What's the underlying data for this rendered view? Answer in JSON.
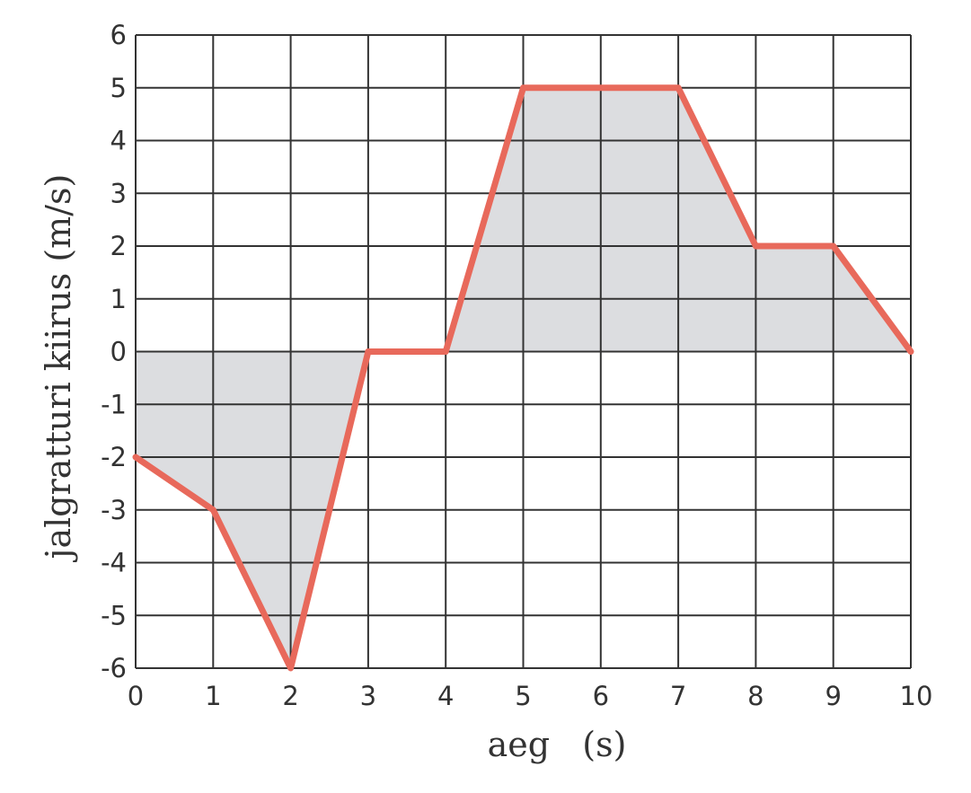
{
  "chart_data": {
    "type": "line",
    "title": "",
    "xlabel": "aeg   (s)",
    "ylabel": "jalgratturi kiirus (m/s)",
    "xlim": [
      0,
      10
    ],
    "ylim": [
      -6,
      6
    ],
    "x_ticks": [
      0,
      1,
      2,
      3,
      4,
      5,
      6,
      7,
      8,
      9,
      10
    ],
    "y_ticks": [
      -6,
      -5,
      -4,
      -3,
      -2,
      -1,
      0,
      1,
      2,
      3,
      4,
      5,
      6
    ],
    "grid": true,
    "area_filled_to_zero": true,
    "x": [
      0,
      1,
      2,
      3,
      4,
      5,
      6,
      7,
      8,
      9,
      10
    ],
    "series": [
      {
        "values": [
          -2,
          -3,
          -6,
          0,
          0,
          5,
          5,
          5,
          2,
          2,
          0
        ]
      }
    ],
    "colors": {
      "line": "#e8695b",
      "fill": "#dcdde0",
      "grid": "#333333"
    }
  }
}
